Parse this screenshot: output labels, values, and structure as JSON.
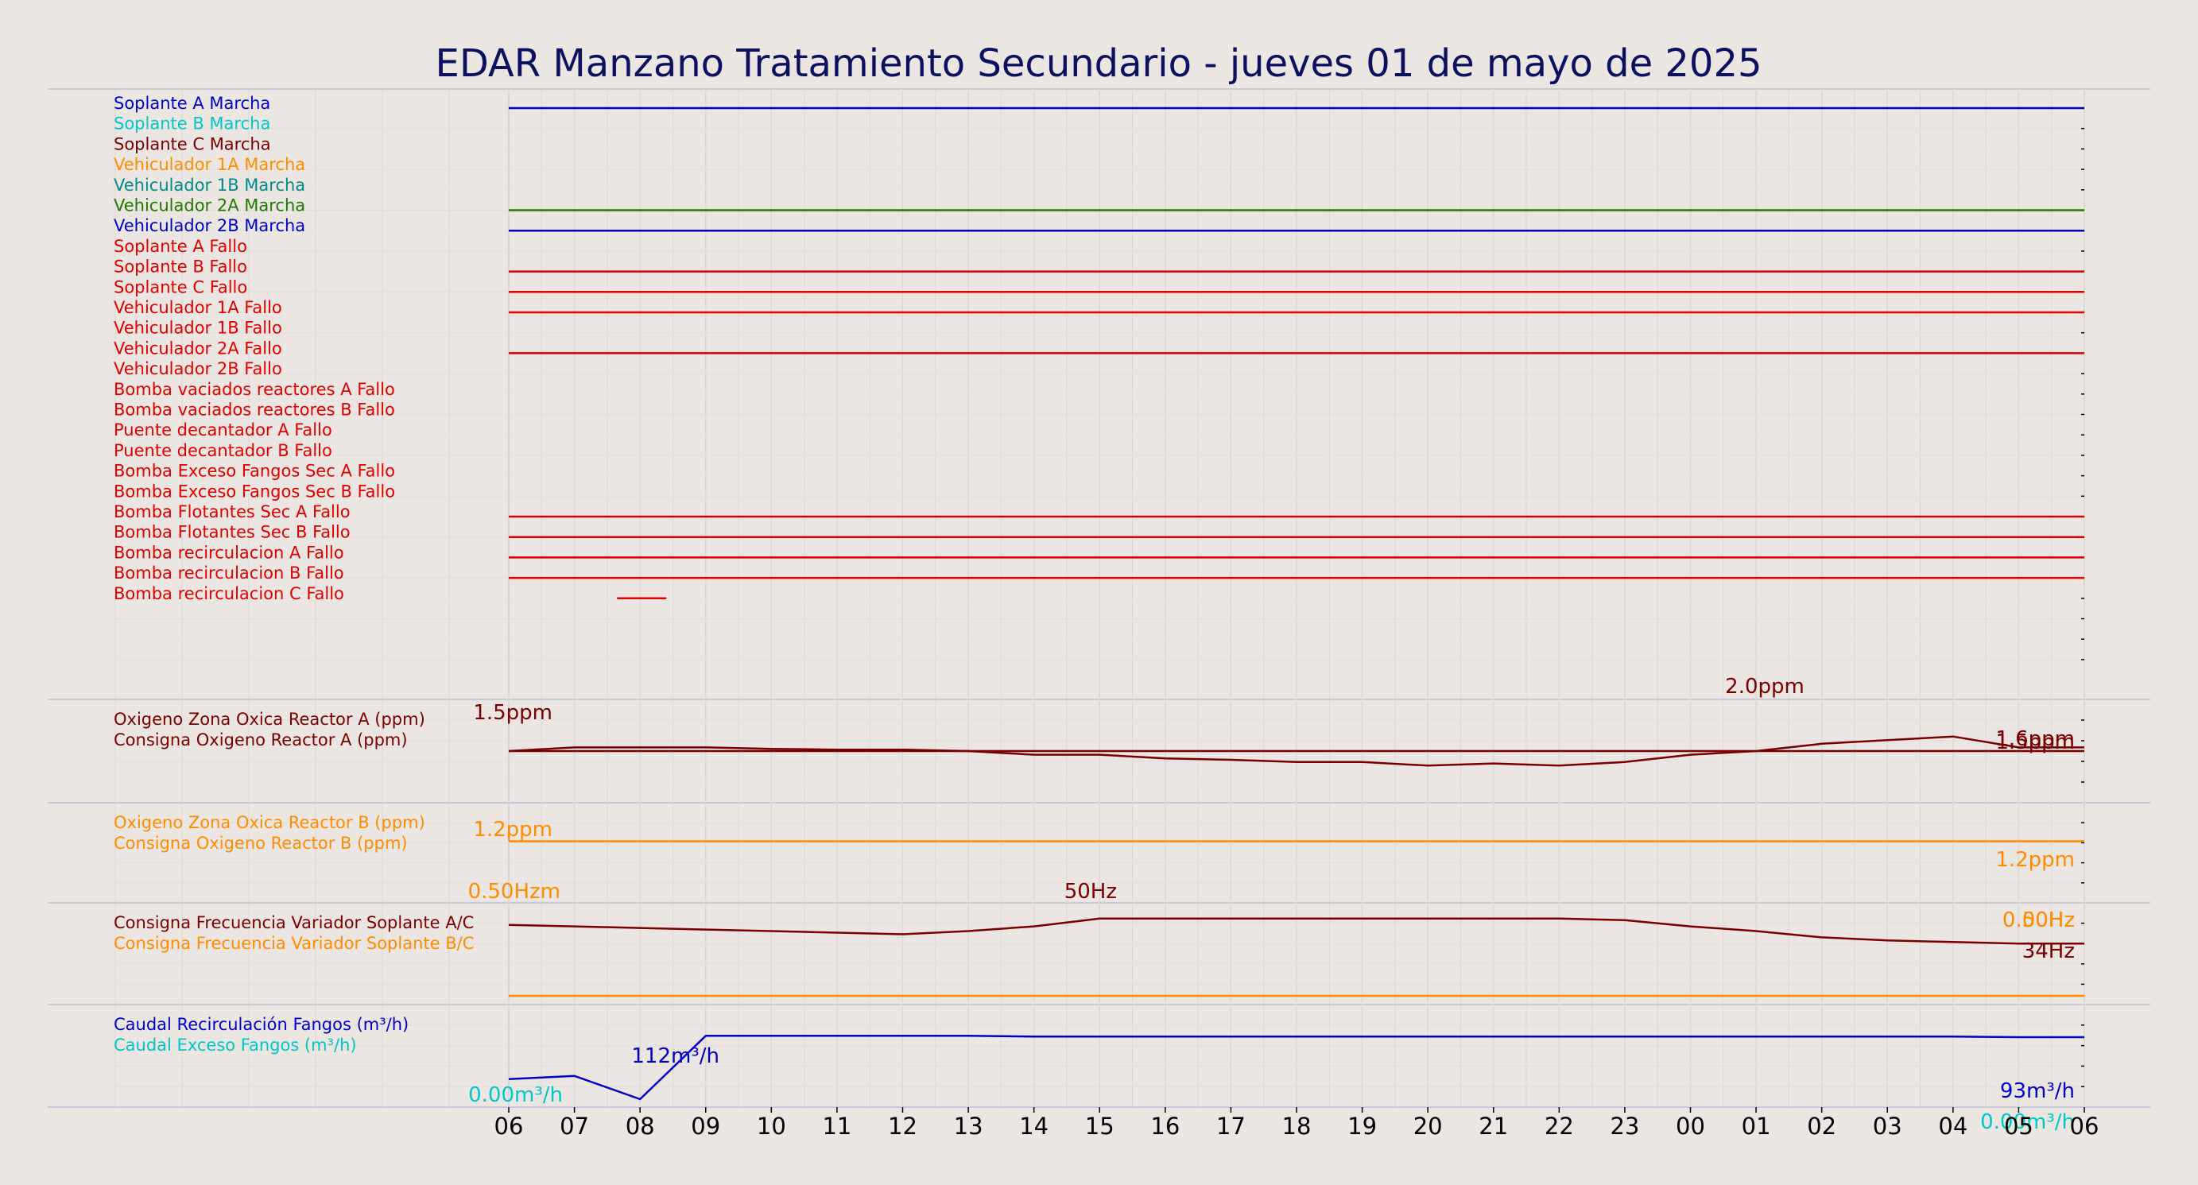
{
  "chart_data": {
    "type": "line",
    "title": "EDAR Manzano Tratamiento Secundario   -   jueves 01 de mayo de 2025",
    "x_ticks": [
      "06",
      "07",
      "08",
      "09",
      "10",
      "11",
      "12",
      "13",
      "14",
      "15",
      "16",
      "17",
      "18",
      "19",
      "20",
      "21",
      "22",
      "23",
      "00",
      "01",
      "02",
      "03",
      "04",
      "05",
      "06"
    ],
    "x_range_hours": [
      0,
      24
    ],
    "panels": [
      {
        "id": "digital",
        "series": [
          {
            "name": "Soplante A Marcha",
            "color": "#0000c8",
            "on": [
              [
                0,
                24
              ]
            ]
          },
          {
            "name": "Soplante B Marcha",
            "color": "#00c8c8",
            "on": []
          },
          {
            "name": "Soplante C Marcha",
            "color": "#7a0000",
            "on": []
          },
          {
            "name": "Vehiculador 1A Marcha",
            "color": "#ff8c00",
            "on": []
          },
          {
            "name": "Vehiculador 1B Marcha",
            "color": "#008b8b",
            "on": []
          },
          {
            "name": "Vehiculador 2A Marcha",
            "color": "#1e7a00",
            "on": [
              [
                0,
                24
              ]
            ]
          },
          {
            "name": "Vehiculador 2B Marcha",
            "color": "#0000c8",
            "on": [
              [
                0,
                24
              ]
            ]
          },
          {
            "name": "Soplante A Fallo",
            "color": "#e00000",
            "on": []
          },
          {
            "name": "Soplante B Fallo",
            "color": "#e00000",
            "on": [
              [
                0,
                24
              ]
            ]
          },
          {
            "name": "Soplante C Fallo",
            "color": "#e00000",
            "on": [
              [
                0,
                24
              ]
            ]
          },
          {
            "name": "Vehiculador 1A Fallo",
            "color": "#e00000",
            "on": [
              [
                0,
                24
              ]
            ]
          },
          {
            "name": "Vehiculador 1B Fallo",
            "color": "#e00000",
            "on": []
          },
          {
            "name": "Vehiculador 2A Fallo",
            "color": "#e00000",
            "on": [
              [
                0,
                24
              ]
            ]
          },
          {
            "name": "Vehiculador 2B Fallo",
            "color": "#e00000",
            "on": []
          },
          {
            "name": "Bomba vaciados reactores A Fallo",
            "color": "#e00000",
            "on": []
          },
          {
            "name": "Bomba vaciados reactores B Fallo",
            "color": "#e00000",
            "on": []
          },
          {
            "name": "Puente decantador A Fallo",
            "color": "#e00000",
            "on": []
          },
          {
            "name": "Puente decantador B Fallo",
            "color": "#e00000",
            "on": []
          },
          {
            "name": "Bomba Exceso Fangos Sec A Fallo",
            "color": "#e00000",
            "on": []
          },
          {
            "name": "Bomba Exceso Fangos Sec B Fallo",
            "color": "#e00000",
            "on": []
          },
          {
            "name": "Bomba Flotantes Sec A Fallo",
            "color": "#e00000",
            "on": [
              [
                0,
                24
              ]
            ]
          },
          {
            "name": "Bomba Flotantes Sec B Fallo",
            "color": "#e00000",
            "on": [
              [
                0,
                24
              ]
            ]
          },
          {
            "name": "Bomba recirculacion A Fallo",
            "color": "#e00000",
            "on": [
              [
                0,
                24
              ]
            ]
          },
          {
            "name": "Bomba recirculacion B Fallo",
            "color": "#e00000",
            "on": [
              [
                0,
                24
              ]
            ]
          },
          {
            "name": "Bomba recirculacion C Fallo",
            "color": "#e00000",
            "on": [
              [
                1.65,
                2.4
              ]
            ]
          }
        ]
      },
      {
        "id": "oxigeno-a",
        "ylim": [
          0.9,
          2.1
        ],
        "series": [
          {
            "name": "Oxigeno Zona Oxica Reactor A (ppm)",
            "color": "#7a0000",
            "values": [
              1.5,
              1.55,
              1.55,
              1.55,
              1.53,
              1.52,
              1.52,
              1.5,
              1.45,
              1.45,
              1.4,
              1.38,
              1.35,
              1.35,
              1.3,
              1.33,
              1.3,
              1.35,
              1.45,
              1.5,
              1.6,
              1.65,
              1.7,
              1.55,
              1.55
            ]
          },
          {
            "name": "Consigna Oxigeno Reactor A (ppm)",
            "color": "#7a0000",
            "values": [
              1.5,
              1.5,
              1.5,
              1.5,
              1.5,
              1.5,
              1.5,
              1.5,
              1.5,
              1.5,
              1.5,
              1.5,
              1.5,
              1.5,
              1.5,
              1.5,
              1.5,
              1.5,
              1.5,
              1.5,
              1.5,
              1.5,
              1.5,
              1.5,
              1.5
            ]
          }
        ],
        "annotations": [
          {
            "text": "1.5ppm",
            "color": "#7a0000"
          },
          {
            "text": "2.0ppm",
            "color": "#7a0000"
          },
          {
            "text": "1.6ppm",
            "color": "#7a0000"
          },
          {
            "text": "1.5ppm",
            "color": "#7a0000"
          }
        ]
      },
      {
        "id": "oxigeno-b",
        "ylim": [
          0.5,
          1.6
        ],
        "series": [
          {
            "name": "Oxigeno Zona Oxica Reactor B (ppm)",
            "color": "#ff8c00",
            "values": []
          },
          {
            "name": "Consigna Oxigeno Reactor B (ppm)",
            "color": "#ff8c00",
            "values": [
              1.2,
              1.2,
              1.2,
              1.2,
              1.2,
              1.2,
              1.2,
              1.2,
              1.2,
              1.2,
              1.2,
              1.2,
              1.2,
              1.2,
              1.2,
              1.2,
              1.2,
              1.2,
              1.2,
              1.2,
              1.2,
              1.2,
              1.2,
              1.2,
              1.2
            ]
          }
        ],
        "annotations": [
          {
            "text": "1.2ppm",
            "color": "#ff8c00"
          },
          {
            "text": "1.2ppm",
            "color": "#ff8c00"
          }
        ]
      },
      {
        "id": "frecuencia",
        "ylim": [
          0,
          55
        ],
        "series": [
          {
            "name": "Consigna Frecuencia Variador Soplante A/C",
            "color": "#7a0000",
            "values": [
              46,
              45,
              44,
              43,
              42,
              41,
              40,
              42,
              45,
              50,
              50,
              50,
              50,
              50,
              50,
              50,
              50,
              49,
              45,
              42,
              38,
              36,
              35,
              34,
              34
            ]
          },
          {
            "name": "Consigna Frecuencia Variador Soplante B/C",
            "color": "#ff8c00",
            "values": [
              0.5,
              0.5,
              0.5,
              0.5,
              0.5,
              0.5,
              0.5,
              0.5,
              0.5,
              0.5,
              0.5,
              0.5,
              0.5,
              0.5,
              0.5,
              0.5,
              0.5,
              0.5,
              0.5,
              0.5,
              0.5,
              0.5,
              0.5,
              0.5,
              0.5
            ]
          }
        ],
        "annotations": [
          {
            "text": "0.50Hzm",
            "color": "#ff8c00"
          },
          {
            "text": "50Hz",
            "color": "#7a0000"
          },
          {
            "text": "0.00Hz",
            "color": "#ff8c00"
          },
          {
            "text": "50Hz",
            "color": "#ff8c00"
          },
          {
            "text": "34Hz",
            "color": "#7a0000"
          }
        ]
      },
      {
        "id": "caudal",
        "ylim": [
          0,
          130
        ],
        "series": [
          {
            "name": "Caudal Recirculación Fangos (m³/h)",
            "color": "#0000c8",
            "values": [
              30,
              35,
              0,
              95,
              95,
              95,
              95,
              95,
              94,
              94,
              94,
              94,
              94,
              94,
              94,
              94,
              94,
              94,
              94,
              94,
              94,
              94,
              94,
              93,
              93
            ]
          },
          {
            "name": "Caudal Exceso Fangos (m³/h)",
            "color": "#00c8c8",
            "values": []
          }
        ],
        "annotations": [
          {
            "text": "112m³/h",
            "color": "#0000c8"
          },
          {
            "text": "0.00m³/h",
            "color": "#00c8c8"
          },
          {
            "text": "93m³/h",
            "color": "#0000c8"
          },
          {
            "text": "0.00m³/h",
            "color": "#00c8c8"
          }
        ]
      }
    ]
  }
}
